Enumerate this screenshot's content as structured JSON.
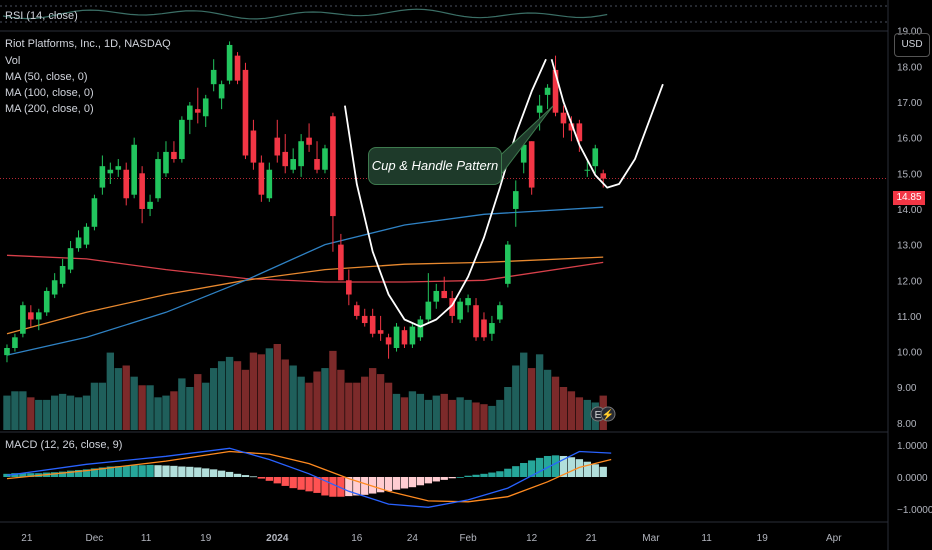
{
  "header": {
    "rsi_label": "RSI (14, close)",
    "symbol_title": "Riot Platforms, Inc., 1D, NASDAQ",
    "vol_label": "Vol",
    "ma50_label": "MA (50, close, 0)",
    "ma100_label": "MA (100, close, 0)",
    "ma200_label": "MA (200, close, 0)",
    "macd_label": "MACD (12, 26, close, 9)"
  },
  "price_axis": {
    "currency_button": "USD",
    "current_price": "14.85",
    "ticks": [
      "19.00",
      "18.00",
      "17.00",
      "16.00",
      "15.00",
      "14.00",
      "13.00",
      "12.00",
      "11.00",
      "10.00",
      "9.00",
      "8.00"
    ]
  },
  "macd_axis": {
    "ticks": [
      "1.0000",
      "0.0000",
      "−1.0000"
    ]
  },
  "time_axis": {
    "ticks": [
      "21",
      "Dec",
      "11",
      "19",
      "2024",
      "16",
      "24",
      "Feb",
      "12",
      "21",
      "Mar",
      "11",
      "19",
      "Apr"
    ]
  },
  "annotation": {
    "text": "Cup & Handle Pattern"
  },
  "colors": {
    "up": "#22c55e",
    "down": "#f23645",
    "vol_up": "#1f5f5b",
    "vol_down": "#7c2a2a",
    "ma50": "#2f82c4",
    "ma100": "#e8892f",
    "ma200": "#d8404a",
    "macd_line": "#2962ff",
    "signal_line": "#ff8a1f"
  },
  "chart_data": {
    "type": "candlestick",
    "title": "Riot Platforms, Inc., 1D, NASDAQ",
    "ylim": [
      7.8,
      19.3
    ],
    "current_price": 14.85,
    "candles": [
      [
        9.9,
        10.2,
        9.7,
        10.1
      ],
      [
        10.1,
        10.5,
        10.0,
        10.4
      ],
      [
        10.5,
        11.4,
        10.4,
        11.3
      ],
      [
        11.1,
        11.3,
        10.7,
        10.9
      ],
      [
        10.9,
        11.2,
        10.6,
        11.1
      ],
      [
        11.1,
        11.8,
        11.0,
        11.7
      ],
      [
        11.6,
        12.2,
        11.5,
        12.0
      ],
      [
        11.9,
        12.6,
        11.8,
        12.4
      ],
      [
        12.3,
        13.1,
        12.2,
        12.9
      ],
      [
        12.9,
        13.4,
        12.8,
        13.2
      ],
      [
        13.0,
        13.6,
        12.9,
        13.5
      ],
      [
        13.5,
        14.4,
        13.4,
        14.3
      ],
      [
        14.6,
        15.5,
        14.4,
        15.2
      ],
      [
        15.0,
        15.3,
        14.7,
        15.1
      ],
      [
        15.1,
        15.4,
        14.9,
        15.2
      ],
      [
        15.1,
        15.3,
        14.1,
        14.3
      ],
      [
        14.4,
        16.0,
        14.3,
        15.8
      ],
      [
        15.0,
        15.2,
        13.6,
        14.0
      ],
      [
        14.0,
        14.4,
        13.8,
        14.2
      ],
      [
        14.3,
        15.6,
        14.2,
        15.4
      ],
      [
        15.0,
        15.9,
        14.9,
        15.6
      ],
      [
        15.6,
        15.9,
        15.3,
        15.4
      ],
      [
        15.4,
        16.6,
        15.3,
        16.5
      ],
      [
        16.5,
        17.0,
        16.1,
        16.9
      ],
      [
        16.8,
        17.4,
        16.4,
        16.7
      ],
      [
        16.6,
        17.2,
        16.3,
        17.1
      ],
      [
        17.5,
        18.2,
        17.3,
        17.9
      ],
      [
        17.1,
        17.6,
        16.8,
        17.5
      ],
      [
        17.6,
        18.7,
        17.5,
        18.6
      ],
      [
        18.3,
        18.4,
        17.5,
        17.6
      ],
      [
        17.9,
        18.1,
        15.4,
        15.5
      ],
      [
        16.2,
        16.5,
        15.1,
        15.3
      ],
      [
        15.3,
        15.5,
        14.2,
        14.4
      ],
      [
        14.3,
        15.3,
        14.2,
        15.1
      ],
      [
        16.0,
        16.5,
        15.3,
        15.5
      ],
      [
        15.6,
        16.1,
        15.0,
        15.2
      ],
      [
        15.1,
        15.7,
        15.0,
        15.4
      ],
      [
        15.2,
        16.1,
        14.9,
        15.9
      ],
      [
        16.0,
        16.4,
        15.6,
        15.8
      ],
      [
        15.4,
        15.9,
        15.0,
        15.1
      ],
      [
        15.1,
        15.8,
        15.0,
        15.7
      ],
      [
        16.6,
        16.7,
        12.8,
        13.8
      ],
      [
        13.0,
        13.3,
        12.0,
        12.0
      ],
      [
        12.0,
        12.3,
        11.3,
        11.6
      ],
      [
        11.3,
        11.4,
        10.9,
        11.0
      ],
      [
        11.0,
        11.2,
        10.7,
        10.8
      ],
      [
        11.0,
        11.2,
        10.4,
        10.5
      ],
      [
        10.6,
        11.0,
        10.3,
        10.5
      ],
      [
        10.4,
        10.5,
        9.8,
        10.2
      ],
      [
        10.1,
        10.8,
        10.0,
        10.7
      ],
      [
        10.6,
        10.7,
        10.1,
        10.2
      ],
      [
        10.2,
        10.8,
        10.1,
        10.7
      ],
      [
        10.4,
        11.0,
        10.3,
        10.9
      ],
      [
        10.9,
        12.2,
        10.8,
        11.4
      ],
      [
        11.4,
        11.9,
        11.2,
        11.7
      ],
      [
        11.7,
        12.1,
        11.5,
        11.5
      ],
      [
        11.5,
        11.7,
        10.8,
        11.0
      ],
      [
        10.9,
        11.5,
        10.8,
        11.4
      ],
      [
        11.3,
        11.6,
        11.1,
        11.5
      ],
      [
        11.3,
        11.5,
        10.3,
        10.4
      ],
      [
        10.9,
        11.1,
        10.3,
        10.4
      ],
      [
        10.5,
        11.0,
        10.3,
        10.8
      ],
      [
        10.9,
        11.4,
        10.8,
        11.3
      ],
      [
        11.9,
        13.1,
        11.8,
        13.0
      ],
      [
        14.0,
        14.8,
        13.5,
        14.5
      ],
      [
        15.3,
        16.1,
        15.0,
        15.8
      ],
      [
        15.9,
        15.9,
        14.4,
        14.6
      ],
      [
        16.7,
        17.2,
        16.2,
        16.9
      ],
      [
        17.2,
        17.5,
        16.8,
        17.4
      ],
      [
        17.9,
        18.3,
        16.6,
        16.7
      ],
      [
        16.7,
        16.9,
        16.0,
        16.4
      ],
      [
        16.4,
        16.6,
        15.9,
        16.2
      ],
      [
        16.4,
        16.5,
        15.6,
        15.9
      ],
      [
        15.1,
        15.4,
        14.9,
        15.1
      ],
      [
        15.2,
        15.8,
        15.0,
        15.7
      ],
      [
        15.0,
        15.1,
        14.6,
        14.85
      ]
    ],
    "volume": [
      0.4,
      0.45,
      0.45,
      0.38,
      0.35,
      0.35,
      0.4,
      0.42,
      0.4,
      0.38,
      0.4,
      0.55,
      0.55,
      0.9,
      0.72,
      0.75,
      0.62,
      0.52,
      0.52,
      0.38,
      0.4,
      0.45,
      0.6,
      0.5,
      0.65,
      0.55,
      0.72,
      0.8,
      0.85,
      0.8,
      0.7,
      0.9,
      0.88,
      0.95,
      1.0,
      0.82,
      0.75,
      0.62,
      0.55,
      0.68,
      0.72,
      0.92,
      0.7,
      0.55,
      0.55,
      0.62,
      0.72,
      0.65,
      0.55,
      0.42,
      0.38,
      0.45,
      0.42,
      0.35,
      0.4,
      0.42,
      0.35,
      0.38,
      0.35,
      0.32,
      0.3,
      0.28,
      0.35,
      0.5,
      0.75,
      0.9,
      0.72,
      0.88,
      0.7,
      0.62,
      0.5,
      0.45,
      0.38,
      0.35,
      0.32,
      0.4
    ],
    "ma50": [
      [
        0,
        9.9
      ],
      [
        10,
        10.4
      ],
      [
        20,
        11.1
      ],
      [
        30,
        12.0
      ],
      [
        40,
        13.0
      ],
      [
        50,
        13.55
      ],
      [
        60,
        13.85
      ],
      [
        75,
        14.05
      ]
    ],
    "ma100": [
      [
        0,
        10.5
      ],
      [
        10,
        11.1
      ],
      [
        20,
        11.6
      ],
      [
        30,
        12.0
      ],
      [
        40,
        12.3
      ],
      [
        50,
        12.45
      ],
      [
        60,
        12.5
      ],
      [
        75,
        12.65
      ]
    ],
    "ma200": [
      [
        0,
        12.7
      ],
      [
        10,
        12.6
      ],
      [
        20,
        12.3
      ],
      [
        30,
        12.05
      ],
      [
        40,
        11.95
      ],
      [
        50,
        11.95
      ],
      [
        60,
        12.0
      ],
      [
        75,
        12.5
      ]
    ],
    "cup_line": [
      [
        42.5,
        16.9
      ],
      [
        44,
        14.7
      ],
      [
        46,
        12.8
      ],
      [
        48,
        11.6
      ],
      [
        50,
        10.9
      ],
      [
        52,
        10.7
      ],
      [
        54,
        10.9
      ],
      [
        56,
        11.3
      ],
      [
        58,
        12.1
      ],
      [
        60,
        13.2
      ],
      [
        62,
        14.6
      ],
      [
        64,
        16.1
      ],
      [
        66,
        17.3
      ],
      [
        67.8,
        18.2
      ]
    ],
    "handle_line": [
      [
        68.5,
        18.2
      ],
      [
        70,
        17.0
      ],
      [
        72,
        15.8
      ],
      [
        74,
        14.95
      ],
      [
        75.5,
        14.6
      ],
      [
        77,
        14.7
      ],
      [
        79,
        15.4
      ],
      [
        81,
        16.6
      ],
      [
        82.5,
        17.5
      ]
    ],
    "macd_ylim": [
      -1.35,
      1.35
    ],
    "macd_hist": [
      0.1,
      0.12,
      0.12,
      0.12,
      0.12,
      0.14,
      0.15,
      0.17,
      0.2,
      0.22,
      0.24,
      0.27,
      0.3,
      0.33,
      0.34,
      0.35,
      0.37,
      0.37,
      0.38,
      0.37,
      0.36,
      0.35,
      0.33,
      0.32,
      0.3,
      0.27,
      0.24,
      0.2,
      0.16,
      0.1,
      0.06,
      0.02,
      -0.05,
      -0.12,
      -0.2,
      -0.28,
      -0.35,
      -0.4,
      -0.45,
      -0.5,
      -0.58,
      -0.62,
      -0.62,
      -0.6,
      -0.58,
      -0.56,
      -0.52,
      -0.48,
      -0.44,
      -0.4,
      -0.36,
      -0.32,
      -0.26,
      -0.2,
      -0.14,
      -0.09,
      -0.04,
      0.0,
      0.04,
      0.07,
      0.1,
      0.14,
      0.18,
      0.26,
      0.34,
      0.44,
      0.52,
      0.6,
      0.66,
      0.68,
      0.66,
      0.62,
      0.56,
      0.48,
      0.4,
      0.32
    ],
    "macd_line": [
      [
        0,
        0.05
      ],
      [
        10,
        0.4
      ],
      [
        20,
        0.65
      ],
      [
        28,
        0.9
      ],
      [
        33,
        0.55
      ],
      [
        38,
        0.1
      ],
      [
        43,
        -0.45
      ],
      [
        48,
        -0.85
      ],
      [
        53,
        -0.95
      ],
      [
        58,
        -0.72
      ],
      [
        63,
        -0.35
      ],
      [
        68,
        0.3
      ],
      [
        72,
        0.8
      ],
      [
        76,
        0.75
      ]
    ],
    "signal_line": [
      [
        0,
        -0.05
      ],
      [
        10,
        0.2
      ],
      [
        20,
        0.5
      ],
      [
        28,
        0.8
      ],
      [
        33,
        0.72
      ],
      [
        38,
        0.42
      ],
      [
        43,
        -0.05
      ],
      [
        48,
        -0.45
      ],
      [
        53,
        -0.75
      ],
      [
        58,
        -0.78
      ],
      [
        63,
        -0.62
      ],
      [
        68,
        -0.15
      ],
      [
        72,
        0.3
      ],
      [
        76,
        0.55
      ]
    ]
  }
}
